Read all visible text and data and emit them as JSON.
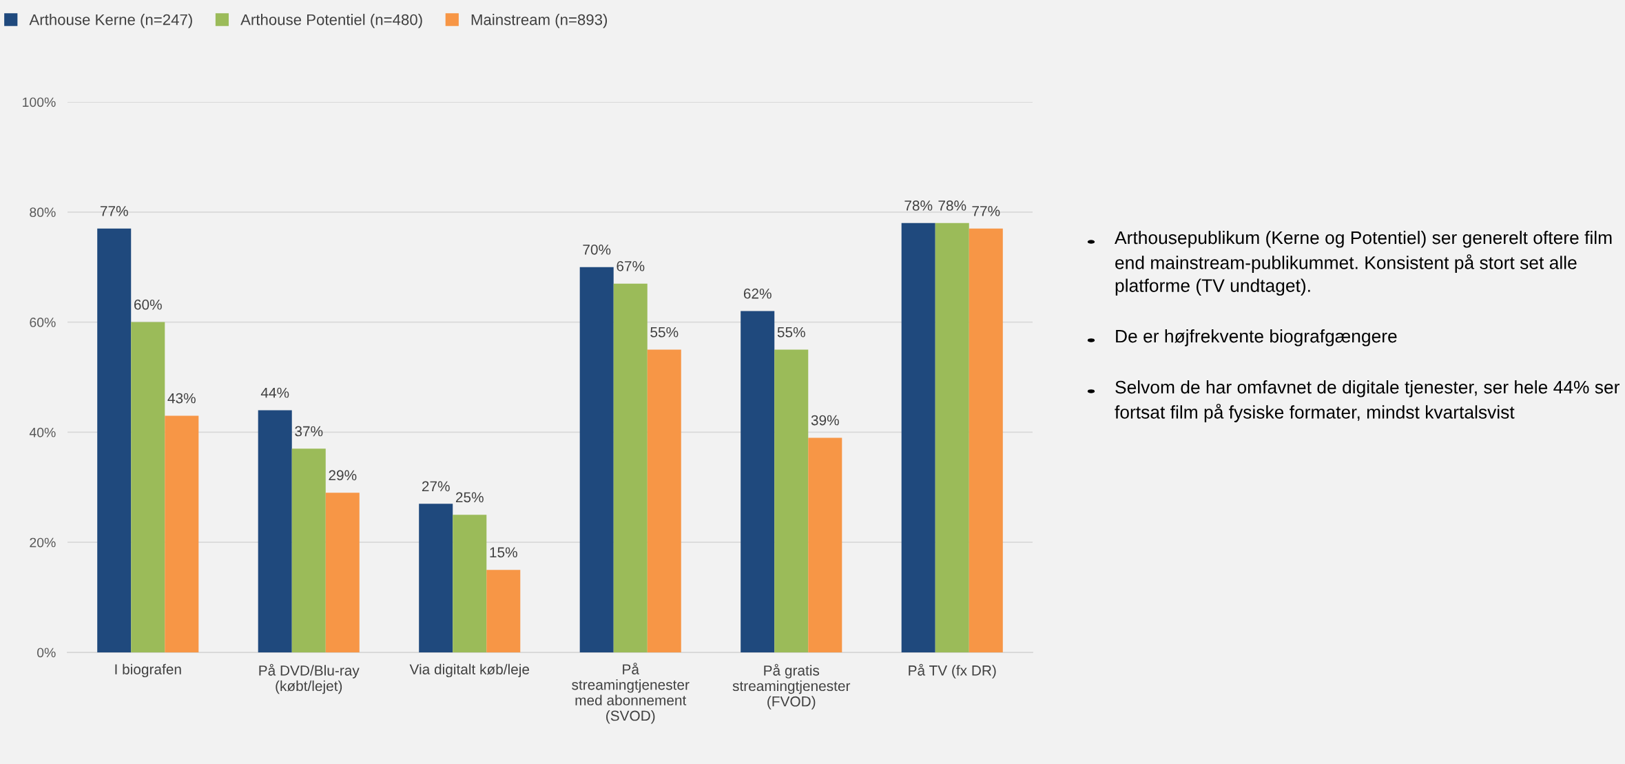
{
  "chart_data": {
    "type": "bar",
    "categories": [
      "I biografen",
      "På DVD/Blu-ray\n(købt/lejet)",
      "Via digitalt køb/leje",
      "På\nstreamingtjenester\nmed abonnement\n(SVOD)",
      "På gratis\nstreamingtjenester\n(FVOD)",
      "På TV (fx DR)"
    ],
    "series": [
      {
        "name": "Arthouse Kerne (n=247)",
        "color": "#1f497d",
        "values": [
          77,
          44,
          27,
          70,
          62,
          78
        ],
        "value_labels": [
          "77%",
          "44%",
          "27%",
          "70%",
          "62%",
          "78%"
        ]
      },
      {
        "name": "Arthouse Potentiel (n=480)",
        "color": "#9bbb59",
        "values": [
          60,
          37,
          25,
          67,
          55,
          78
        ],
        "value_labels": [
          "60%",
          "37%",
          "25%",
          "67%",
          "55%",
          "78%"
        ]
      },
      {
        "name": "Mainstream (n=893)",
        "color": "#f79646",
        "values": [
          43,
          29,
          15,
          55,
          39,
          77
        ],
        "value_labels": [
          "43%",
          "29%",
          "15%",
          "55%",
          "39%",
          "77%"
        ]
      }
    ],
    "ylim": [
      0,
      100
    ],
    "yticks": [
      {
        "value": 0,
        "label": "0%"
      },
      {
        "value": 20,
        "label": "20%"
      },
      {
        "value": 40,
        "label": "40%"
      },
      {
        "value": 60,
        "label": "60%"
      },
      {
        "value": 80,
        "label": "80%"
      },
      {
        "value": 100,
        "label": "100%"
      }
    ],
    "grid": "y",
    "legend": "top",
    "annotations": [
      "Arthousepublikum (Kerne og Potentiel) ser generelt oftere film end mainstream-publikummet. Konsistent på stort set alle platforme (TV undtaget).",
      "De er højfrekvente biografgængere",
      "Selvom de har omfavnet de digitale tjenester, ser hele 44% ser fortsat film på fysiske formater, mindst kvartalsvist"
    ]
  }
}
